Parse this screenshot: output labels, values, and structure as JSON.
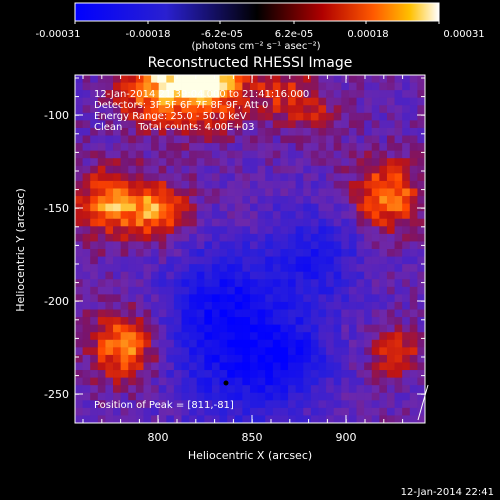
{
  "colorbar": {
    "tick_labels": [
      "-0.00031",
      "-0.00018",
      "-6.2e-05",
      "6.2e-05",
      "0.00018",
      "0.00031"
    ],
    "unit_label": "(photons cm⁻² s⁻¹ asec⁻²)",
    "range": [
      -0.00031,
      0.00031
    ]
  },
  "plot": {
    "title": "Reconstructed RHESSI Image",
    "info_lines": [
      "12-Jan-2014 21:39:04.000 to 21:41:16.000",
      "Detectors: 3F 5F 6F 7F 8F 9F, Att 0",
      "Energy Range: 25.0 - 50.0 keV",
      "Clean     Total counts: 4.00E+03"
    ],
    "peak_label": "Position of Peak = [811,-81]",
    "xlabel": "Heliocentric X (arcsec)",
    "ylabel": "Heliocentric Y (arcsec)",
    "xticks": [
      "800",
      "850",
      "900"
    ],
    "yticks": [
      "-100",
      "-150",
      "-200",
      "-250"
    ],
    "xlim": [
      750,
      940
    ],
    "ylim": [
      -272,
      -81
    ]
  },
  "footer": {
    "timestamp": "12-Jan-2014 22:41"
  },
  "colors": {
    "background": "#000000",
    "text": "#ffffff"
  }
}
